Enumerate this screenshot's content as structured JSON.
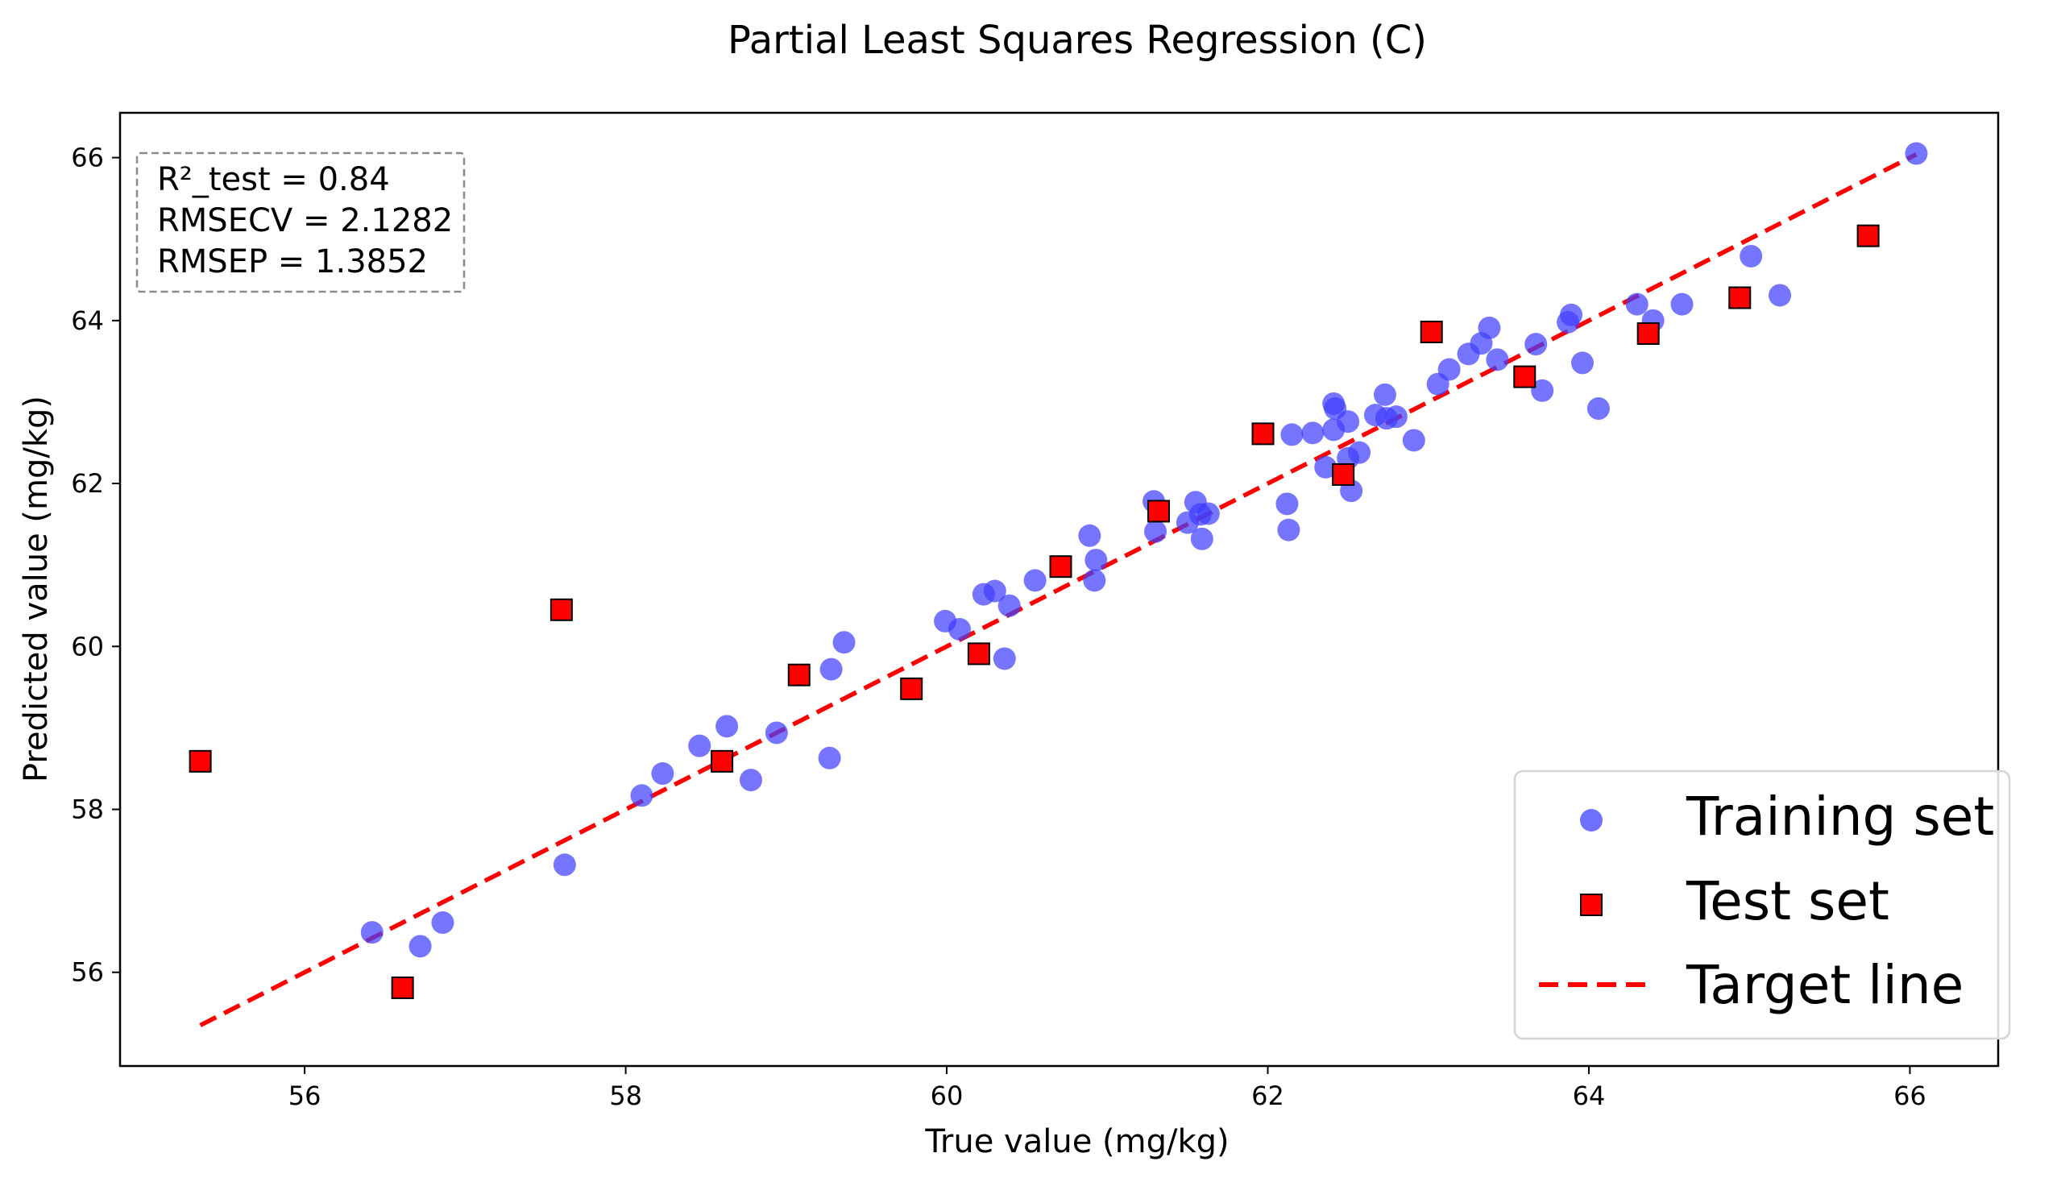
{
  "chart_data": {
    "type": "scatter",
    "title": "Partial Least Squares Regression (C)",
    "xlabel": "True value (mg/kg)",
    "ylabel": "Predicted value (mg/kg)",
    "xlim": [
      54.85,
      66.55
    ],
    "ylim": [
      54.85,
      66.55
    ],
    "xticks": [
      56,
      58,
      60,
      62,
      64,
      66
    ],
    "yticks": [
      56,
      58,
      60,
      62,
      64,
      66
    ],
    "grid": false,
    "stats": [
      "R²_test = 0.84",
      "RMSECV = 2.1282",
      "RMSEP = 1.3852"
    ],
    "legend_position": "bottom-right",
    "series": [
      {
        "name": "Training set",
        "marker": "circle",
        "color": "#4040ff",
        "points": [
          [
            56.42,
            56.49
          ],
          [
            56.72,
            56.32
          ],
          [
            56.86,
            56.61
          ],
          [
            57.62,
            57.32
          ],
          [
            58.1,
            58.17
          ],
          [
            58.23,
            58.44
          ],
          [
            58.46,
            58.78
          ],
          [
            58.63,
            59.02
          ],
          [
            58.78,
            58.36
          ],
          [
            58.94,
            58.94
          ],
          [
            59.27,
            58.63
          ],
          [
            59.28,
            59.72
          ],
          [
            59.36,
            60.05
          ],
          [
            59.99,
            60.31
          ],
          [
            60.08,
            60.21
          ],
          [
            60.23,
            60.64
          ],
          [
            60.3,
            60.68
          ],
          [
            60.36,
            59.85
          ],
          [
            60.39,
            60.5
          ],
          [
            60.55,
            60.81
          ],
          [
            60.89,
            61.36
          ],
          [
            60.92,
            60.81
          ],
          [
            60.93,
            61.06
          ],
          [
            61.29,
            61.78
          ],
          [
            61.3,
            61.41
          ],
          [
            61.5,
            61.52
          ],
          [
            61.55,
            61.77
          ],
          [
            61.58,
            61.62
          ],
          [
            61.59,
            61.32
          ],
          [
            61.63,
            61.63
          ],
          [
            62.12,
            61.75
          ],
          [
            62.13,
            61.43
          ],
          [
            62.15,
            62.6
          ],
          [
            62.28,
            62.62
          ],
          [
            62.36,
            62.2
          ],
          [
            62.41,
            62.98
          ],
          [
            62.41,
            62.66
          ],
          [
            62.42,
            62.92
          ],
          [
            62.5,
            62.76
          ],
          [
            62.5,
            62.31
          ],
          [
            62.52,
            61.91
          ],
          [
            62.57,
            62.38
          ],
          [
            62.67,
            62.84
          ],
          [
            62.73,
            63.09
          ],
          [
            62.74,
            62.8
          ],
          [
            62.8,
            62.82
          ],
          [
            62.91,
            62.53
          ],
          [
            63.06,
            63.22
          ],
          [
            63.13,
            63.4
          ],
          [
            63.25,
            63.59
          ],
          [
            63.33,
            63.72
          ],
          [
            63.38,
            63.91
          ],
          [
            63.43,
            63.52
          ],
          [
            63.67,
            63.71
          ],
          [
            63.71,
            63.14
          ],
          [
            63.87,
            63.98
          ],
          [
            63.89,
            64.07
          ],
          [
            63.96,
            63.48
          ],
          [
            64.06,
            62.92
          ],
          [
            64.3,
            64.2
          ],
          [
            64.4,
            64.0
          ],
          [
            64.58,
            64.2
          ],
          [
            65.01,
            64.79
          ],
          [
            65.19,
            64.31
          ],
          [
            66.04,
            66.05
          ]
        ]
      },
      {
        "name": "Test set",
        "marker": "square",
        "color": "#ff0000",
        "points": [
          [
            55.35,
            58.59
          ],
          [
            56.61,
            55.81
          ],
          [
            57.6,
            60.45
          ],
          [
            58.6,
            58.59
          ],
          [
            59.08,
            59.65
          ],
          [
            59.78,
            59.48
          ],
          [
            60.2,
            59.91
          ],
          [
            60.71,
            60.98
          ],
          [
            61.32,
            61.66
          ],
          [
            61.97,
            62.61
          ],
          [
            62.47,
            62.11
          ],
          [
            63.02,
            63.86
          ],
          [
            63.6,
            63.31
          ],
          [
            64.37,
            63.84
          ],
          [
            64.94,
            64.28
          ],
          [
            65.74,
            65.04
          ]
        ]
      },
      {
        "name": "Target line",
        "marker": "dashed-line",
        "color": "#ff0000",
        "points": [
          [
            55.35,
            55.35
          ],
          [
            66.04,
            66.04
          ]
        ]
      }
    ]
  }
}
